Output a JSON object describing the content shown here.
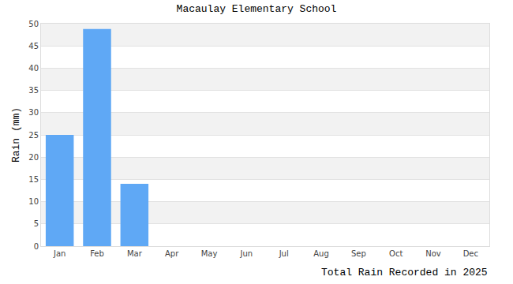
{
  "chart_data": {
    "type": "bar",
    "title": "Macaulay Elementary School",
    "ylabel": "Rain (mm)",
    "xlabel": "Total Rain Recorded in 2025",
    "categories": [
      "Jan",
      "Feb",
      "Mar",
      "Apr",
      "May",
      "Jun",
      "Jul",
      "Aug",
      "Sep",
      "Oct",
      "Nov",
      "Dec"
    ],
    "values": [
      25,
      48.8,
      14,
      null,
      null,
      null,
      null,
      null,
      null,
      null,
      null,
      null
    ],
    "color": "#5fa8f5",
    "ylim": [
      0,
      50
    ],
    "yticks": [
      0,
      5,
      10,
      15,
      20,
      25,
      30,
      35,
      40,
      45,
      50
    ],
    "grid": true
  }
}
